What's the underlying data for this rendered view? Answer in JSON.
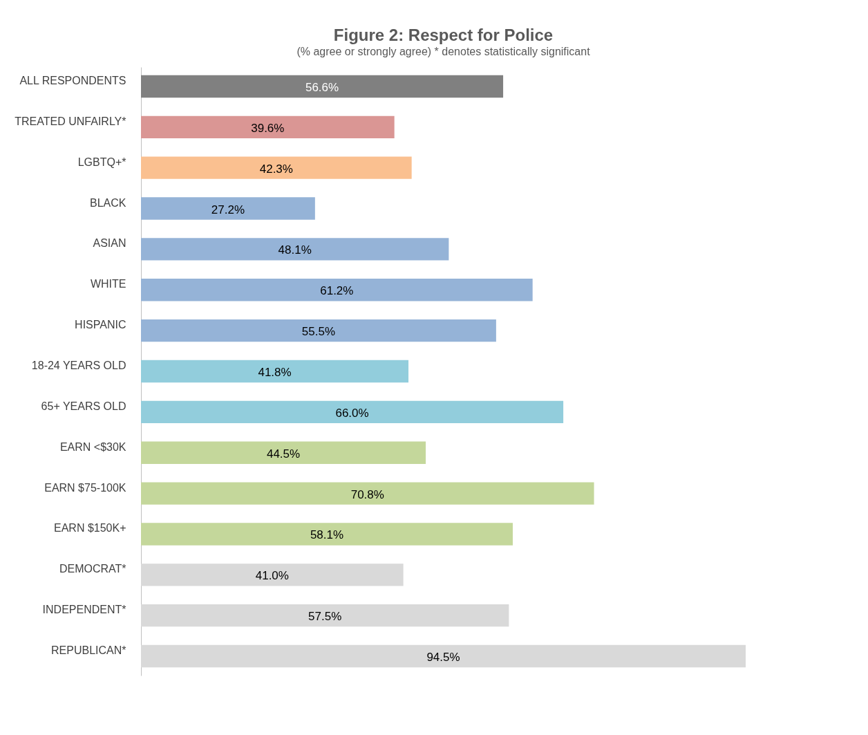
{
  "chart_data": {
    "type": "bar",
    "orientation": "horizontal",
    "title": "Figure 2: Respect for Police",
    "subtitle": "(% agree or strongly agree) * denotes statistically significant",
    "categories": [
      "ALL RESPONDENTS",
      "TREATED UNFAIRLY*",
      "LGBTQ+*",
      "BLACK",
      "ASIAN",
      "WHITE",
      "HISPANIC",
      "18-24 YEARS OLD",
      "65+ YEARS OLD",
      "EARN <$30K",
      "EARN $75-100K",
      "EARN $150K+",
      "DEMOCRAT*",
      "INDEPENDENT*",
      "REPUBLICAN*"
    ],
    "values": [
      56.6,
      39.6,
      42.3,
      27.2,
      48.1,
      61.2,
      55.5,
      41.8,
      66.0,
      44.5,
      70.8,
      58.1,
      41.0,
      57.5,
      94.5
    ],
    "value_labels": [
      "56.6%",
      "39.6%",
      "42.3%",
      "27.2%",
      "48.1%",
      "61.2%",
      "55.5%",
      "41.8%",
      "66.0%",
      "44.5%",
      "70.8%",
      "58.1%",
      "41.0%",
      "57.5%",
      "94.5%"
    ],
    "colors": [
      "#808080",
      "#da9694",
      "#fac090",
      "#95b3d7",
      "#95b3d7",
      "#95b3d7",
      "#95b3d7",
      "#92cddc",
      "#92cddc",
      "#c4d79b",
      "#c4d79b",
      "#c4d79b",
      "#d9d9d9",
      "#d9d9d9",
      "#d9d9d9"
    ]
  }
}
